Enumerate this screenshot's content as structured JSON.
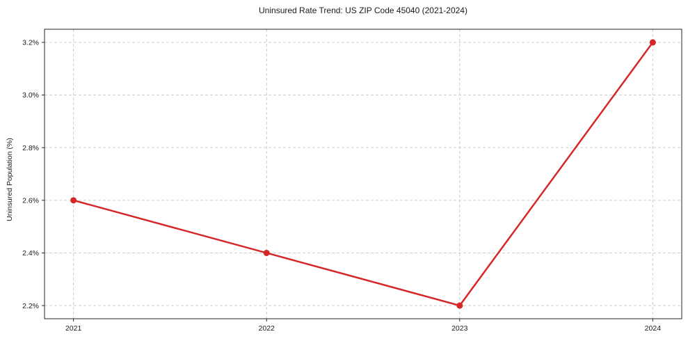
{
  "chart_data": {
    "type": "line",
    "title": "Uninsured Rate Trend: US ZIP Code 45040 (2021-2024)",
    "xlabel": "",
    "ylabel": "Uninsured Population (%)",
    "x": [
      2021,
      2022,
      2023,
      2024
    ],
    "values": [
      2.6,
      2.4,
      2.2,
      3.2
    ],
    "x_tick_labels": [
      "2021",
      "2022",
      "2023",
      "2024"
    ],
    "y_ticks": [
      2.2,
      2.4,
      2.6,
      2.8,
      3.0,
      3.2
    ],
    "y_tick_labels": [
      "2.2%",
      "2.4%",
      "2.6%",
      "2.8%",
      "3.0%",
      "3.2%"
    ],
    "xlim": [
      2020.85,
      2024.15
    ],
    "ylim": [
      2.15,
      3.25
    ],
    "grid": true,
    "legend": "none",
    "colors": {
      "line": "#d62728",
      "marker": "#d62728",
      "grid": "#cccccc",
      "frame": "#262626",
      "text": "#1a1a1a",
      "background": "#ffffff"
    }
  }
}
